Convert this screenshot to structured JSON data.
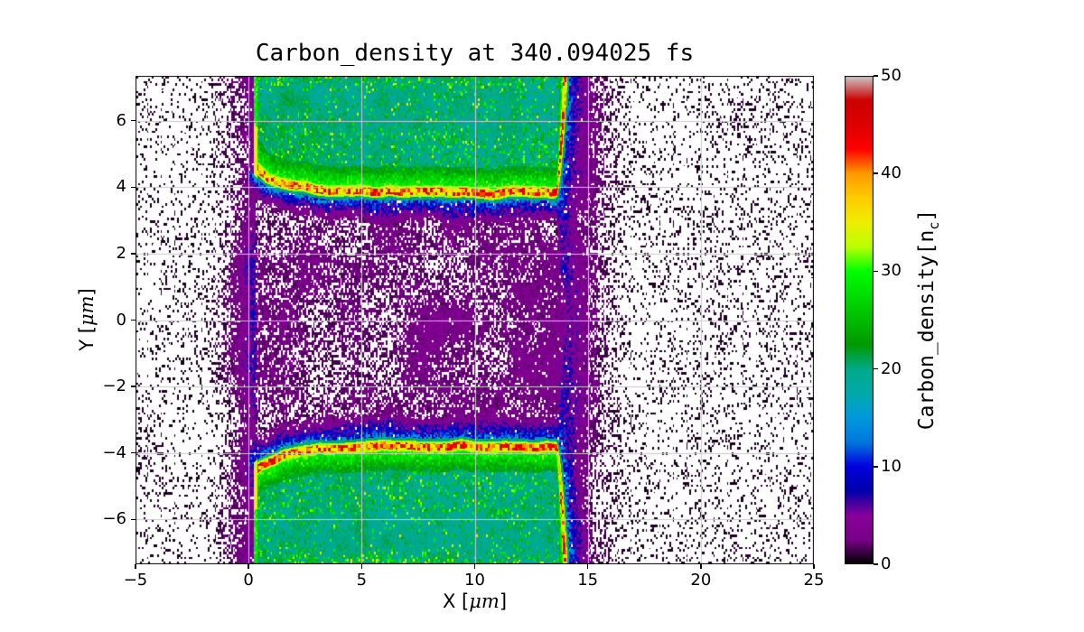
{
  "chart_data": {
    "type": "heatmap",
    "title": "Carbon_density at 340.094025 fs",
    "xlabel": "X [μm]",
    "ylabel": "Y [μm]",
    "xlabel_parts": {
      "pre": "X [",
      "mu": "μm",
      "post": "]"
    },
    "ylabel_parts": {
      "pre": "Y [",
      "mu": "μm",
      "post": "]"
    },
    "xlim": [
      -5,
      25
    ],
    "ylim": [
      -7.35,
      7.35
    ],
    "xticks": [
      -5,
      0,
      5,
      10,
      15,
      20,
      25
    ],
    "yticks": [
      -6,
      -4,
      -2,
      0,
      2,
      4,
      6
    ],
    "grid": true,
    "grid_color": "#c9c9c9",
    "background": "#ffffff",
    "empty_color": "#ffffff",
    "colorbar": {
      "label": "Carbon_density[n_c]",
      "label_parts": {
        "pre": "Carbon_density[n",
        "sub": "c",
        "post": "]"
      },
      "min": 0,
      "max": 50,
      "ticks": [
        0,
        10,
        20,
        30,
        40,
        50
      ],
      "colormap": "nipy_spectral",
      "stops": [
        [
          0.0,
          "#000000"
        ],
        [
          0.05,
          "#770088"
        ],
        [
          0.1,
          "#880099"
        ],
        [
          0.15,
          "#0000aa"
        ],
        [
          0.2,
          "#0000dd"
        ],
        [
          0.25,
          "#0077dd"
        ],
        [
          0.3,
          "#0099dd"
        ],
        [
          0.35,
          "#00aaaa"
        ],
        [
          0.4,
          "#00aa88"
        ],
        [
          0.45,
          "#009900"
        ],
        [
          0.5,
          "#00bb00"
        ],
        [
          0.55,
          "#00dd00"
        ],
        [
          0.6,
          "#00ff00"
        ],
        [
          0.65,
          "#bbff00"
        ],
        [
          0.7,
          "#eeee00"
        ],
        [
          0.75,
          "#ffcc00"
        ],
        [
          0.8,
          "#ff9900"
        ],
        [
          0.85,
          "#ff0000"
        ],
        [
          0.9,
          "#dd0000"
        ],
        [
          0.95,
          "#cc0000"
        ],
        [
          1.0,
          "#cccccc"
        ]
      ]
    },
    "features": {
      "description": "Two dense carbon slabs (teal, ~20 nc) above y=+3.5 um and below y=-3.5 um spanning 0<x<15 um, each bounded by a compressed high-density front (yellow/red, 35-50 nc) along the central channel walls that bends upward at x~14 um; scattered low-density carbon (black/purple speckle, <6 nc) fills the central channel and margins; white = no carbon.",
      "slab_x_range": [
        0.25,
        14.75
      ],
      "slab_interior_density_nc": 20,
      "ridge_surface_y_um": 3.58,
      "ridge_left_rise_amp": 0.85,
      "ridge_left_rise_scale": 1.5,
      "ridge_wiggle_amp": 0.14,
      "ridge_corner_x": 13.6,
      "ridge_corner_curvature": 3.3,
      "ridge_band_width_um": 0.42,
      "ridge_density_range_nc": [
        33,
        47
      ],
      "fringe_density_nc": 15,
      "fringe_decay_um": 0.42,
      "channel_noise_level": 2.3,
      "channel_x_gradient": 0.6,
      "left_margin_level": 6.5,
      "left_margin_decay_um": 0.9,
      "right_margin_level": 5.0,
      "right_margin_decay_um": 1.15,
      "background_speckle_level": 0.55,
      "speckle_cell_um": 0.075,
      "green_speckle_range_nc": [
        23.5,
        32
      ],
      "max_scatter_density_nc": 17
    }
  }
}
